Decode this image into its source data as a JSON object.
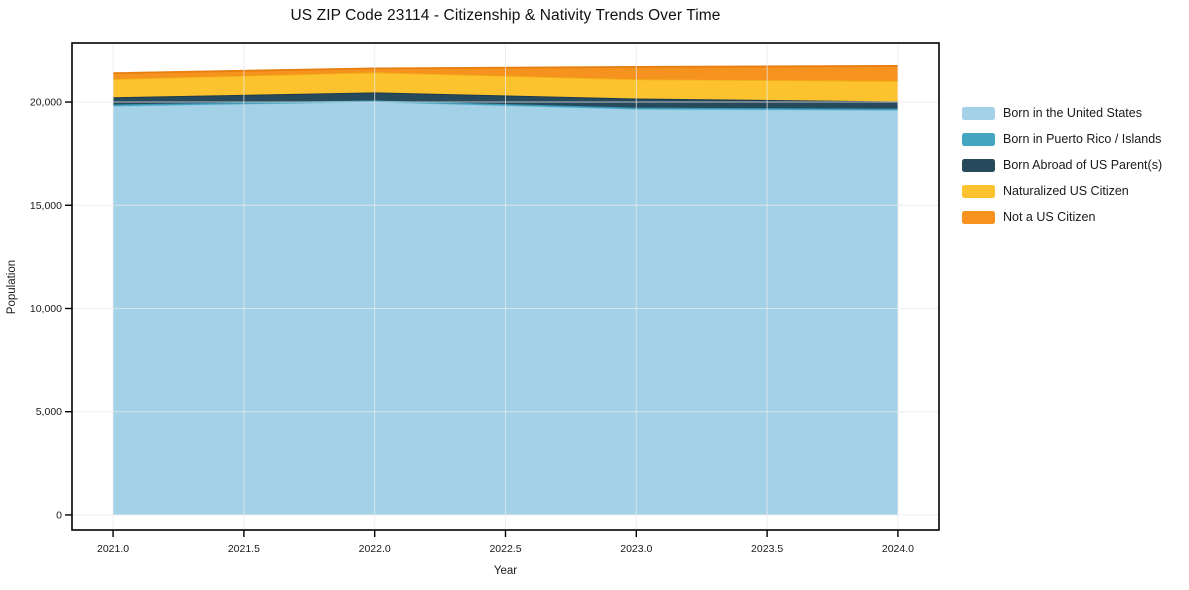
{
  "chart_data": {
    "type": "area",
    "stacked": true,
    "title": "US ZIP Code 23114 - Citizenship & Nativity Trends Over Time",
    "xlabel": "Year",
    "ylabel": "Population",
    "x": [
      2021,
      2022,
      2023,
      2024
    ],
    "series": [
      {
        "name": "Born in the United States",
        "color": "#A3D2E8",
        "edge_color": "#8BC2DC",
        "values": [
          19800,
          20000,
          19650,
          19600
        ]
      },
      {
        "name": "Born in Puerto Rico / Islands",
        "color": "#45A6C2",
        "edge_color": "#3795B2",
        "values": [
          80,
          80,
          80,
          80
        ]
      },
      {
        "name": "Born Abroad of US Parent(s)",
        "color": "#27495C",
        "edge_color": "#1E3A4A",
        "values": [
          350,
          390,
          440,
          350
        ]
      },
      {
        "name": "Naturalized US Citizen",
        "color": "#FDC32E",
        "edge_color": "#F2B317",
        "values": [
          880,
          965,
          930,
          990
        ]
      },
      {
        "name": "Not a US Citizen",
        "color": "#F6921E",
        "edge_color": "#E67E10",
        "values": [
          290,
          195,
          600,
          730
        ]
      }
    ],
    "xticks": [
      2021.0,
      2021.5,
      2022.0,
      2022.5,
      2023.0,
      2023.5,
      2024.0
    ],
    "xtick_labels": [
      "2021.0",
      "2021.5",
      "2022.0",
      "2022.5",
      "2023.0",
      "2023.5",
      "2024.0"
    ],
    "yticks": [
      0,
      5000,
      10000,
      15000,
      20000
    ],
    "ytick_labels": [
      "0",
      "5,000",
      "10,000",
      "15,000",
      "20,000"
    ],
    "xlim": [
      2020.843,
      2024.157
    ],
    "ylim": [
      -730,
      22860
    ],
    "grid": true,
    "gridline_color": "#e8e8e8",
    "spine_color": "#000000",
    "tick_label_color": "#1a1a1a",
    "background_color": "#ffffff",
    "legend_position": "right"
  }
}
